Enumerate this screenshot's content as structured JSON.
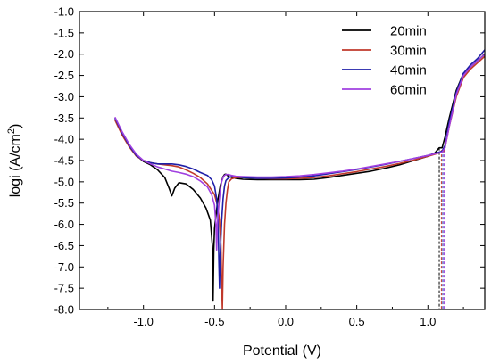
{
  "chart_data": {
    "type": "line",
    "xlabel": "Potential (V)",
    "ylabel": "logi (A/cm²)",
    "ylabel_main": "logi (A/cm",
    "ylabel_sup": "2",
    "ylabel_close": ")",
    "xlim": [
      -1.45,
      1.4
    ],
    "ylim": [
      -8.0,
      -1.0
    ],
    "x_ticks": [
      -1.0,
      -0.5,
      0.0,
      0.5,
      1.0
    ],
    "x_tick_labels": [
      "-1.0",
      "-0.5",
      "0.0",
      "0.5",
      "1.0"
    ],
    "y_ticks": [
      -8.0,
      -7.5,
      -7.0,
      -6.5,
      -6.0,
      -5.5,
      -5.0,
      -4.5,
      -4.0,
      -3.5,
      -3.0,
      -2.5,
      -2.0,
      -1.5,
      -1.0
    ],
    "y_tick_labels": [
      "-8.0",
      "-7.5",
      "-7.0",
      "-6.5",
      "-6.0",
      "-5.5",
      "-5.0",
      "-4.5",
      "-4.0",
      "-3.5",
      "-3.0",
      "-2.5",
      "-2.0",
      "-1.5",
      "-1.0"
    ],
    "grid": false,
    "legend_position": "top-right",
    "series": [
      {
        "name": "20min",
        "color": "#000000",
        "x": [
          -1.2,
          -1.15,
          -1.1,
          -1.05,
          -1.0,
          -0.95,
          -0.9,
          -0.85,
          -0.82,
          -0.8,
          -0.78,
          -0.75,
          -0.7,
          -0.65,
          -0.6,
          -0.56,
          -0.53,
          -0.515,
          -0.51,
          -0.505,
          -0.5,
          -0.49,
          -0.48,
          -0.47,
          -0.46,
          -0.45,
          -0.44,
          -0.43,
          -0.42,
          -0.41,
          -0.4,
          -0.35,
          -0.3,
          -0.2,
          -0.1,
          0.0,
          0.1,
          0.2,
          0.3,
          0.4,
          0.5,
          0.6,
          0.7,
          0.8,
          0.9,
          1.0,
          1.05,
          1.08,
          1.09,
          1.1,
          1.12,
          1.15,
          1.2,
          1.25,
          1.3,
          1.35,
          1.4
        ],
        "y": [
          -3.5,
          -3.85,
          -4.15,
          -4.38,
          -4.52,
          -4.6,
          -4.72,
          -4.9,
          -5.15,
          -5.33,
          -5.15,
          -5.02,
          -5.05,
          -5.18,
          -5.38,
          -5.62,
          -5.9,
          -6.5,
          -7.8,
          -6.6,
          -6.1,
          -5.8,
          -5.5,
          -5.3,
          -5.1,
          -4.98,
          -4.88,
          -4.83,
          -4.82,
          -4.85,
          -4.88,
          -4.92,
          -4.94,
          -4.95,
          -4.95,
          -4.95,
          -4.95,
          -4.94,
          -4.9,
          -4.85,
          -4.8,
          -4.75,
          -4.68,
          -4.6,
          -4.5,
          -4.4,
          -4.32,
          -4.2,
          -4.2,
          -4.2,
          -3.95,
          -3.5,
          -2.85,
          -2.45,
          -2.3,
          -2.15,
          -2.0
        ]
      },
      {
        "name": "30min",
        "color": "#c0392b",
        "x": [
          -1.2,
          -1.15,
          -1.1,
          -1.05,
          -1.0,
          -0.95,
          -0.9,
          -0.85,
          -0.8,
          -0.75,
          -0.7,
          -0.65,
          -0.6,
          -0.55,
          -0.5,
          -0.48,
          -0.465,
          -0.455,
          -0.45,
          -0.445,
          -0.44,
          -0.43,
          -0.42,
          -0.41,
          -0.4,
          -0.38,
          -0.35,
          -0.3,
          -0.2,
          -0.1,
          0.0,
          0.1,
          0.2,
          0.3,
          0.4,
          0.5,
          0.6,
          0.7,
          0.8,
          0.9,
          1.0,
          1.05,
          1.08,
          1.1,
          1.11,
          1.12,
          1.15,
          1.2,
          1.25,
          1.3,
          1.35,
          1.4
        ],
        "y": [
          -3.55,
          -3.9,
          -4.18,
          -4.4,
          -4.5,
          -4.55,
          -4.58,
          -4.6,
          -4.62,
          -4.65,
          -4.72,
          -4.8,
          -4.9,
          -5.05,
          -5.3,
          -5.55,
          -5.9,
          -6.5,
          -7.4,
          -8.0,
          -7.0,
          -6.0,
          -5.5,
          -5.2,
          -5.0,
          -4.93,
          -4.9,
          -4.9,
          -4.92,
          -4.93,
          -4.93,
          -4.92,
          -4.9,
          -4.86,
          -4.81,
          -4.76,
          -4.7,
          -4.64,
          -4.57,
          -4.49,
          -4.4,
          -4.35,
          -4.32,
          -4.3,
          -4.28,
          -4.2,
          -3.7,
          -3.0,
          -2.55,
          -2.35,
          -2.2,
          -2.05
        ]
      },
      {
        "name": "40min",
        "color": "#1f1fa8",
        "x": [
          -1.2,
          -1.15,
          -1.1,
          -1.05,
          -1.0,
          -0.95,
          -0.9,
          -0.85,
          -0.8,
          -0.75,
          -0.7,
          -0.65,
          -0.6,
          -0.55,
          -0.52,
          -0.5,
          -0.485,
          -0.475,
          -0.47,
          -0.465,
          -0.46,
          -0.45,
          -0.44,
          -0.43,
          -0.42,
          -0.4,
          -0.38,
          -0.35,
          -0.3,
          -0.2,
          -0.1,
          0.0,
          0.1,
          0.2,
          0.3,
          0.4,
          0.5,
          0.6,
          0.7,
          0.8,
          0.9,
          1.0,
          1.05,
          1.08,
          1.1,
          1.12,
          1.15,
          1.2,
          1.25,
          1.3,
          1.35,
          1.4
        ],
        "y": [
          -3.5,
          -3.85,
          -4.15,
          -4.38,
          -4.5,
          -4.55,
          -4.58,
          -4.58,
          -4.58,
          -4.6,
          -4.64,
          -4.7,
          -4.78,
          -4.85,
          -4.95,
          -5.1,
          -5.4,
          -5.9,
          -6.8,
          -7.5,
          -6.7,
          -5.9,
          -5.4,
          -5.1,
          -4.97,
          -4.9,
          -4.88,
          -4.88,
          -4.9,
          -4.92,
          -4.92,
          -4.91,
          -4.89,
          -4.86,
          -4.81,
          -4.76,
          -4.71,
          -4.65,
          -4.59,
          -4.52,
          -4.45,
          -4.38,
          -4.33,
          -4.3,
          -4.28,
          -4.15,
          -3.6,
          -2.9,
          -2.45,
          -2.25,
          -2.1,
          -1.9
        ]
      },
      {
        "name": "60min",
        "color": "#a040e0",
        "x": [
          -1.2,
          -1.15,
          -1.1,
          -1.05,
          -1.0,
          -0.95,
          -0.9,
          -0.85,
          -0.8,
          -0.75,
          -0.7,
          -0.65,
          -0.6,
          -0.55,
          -0.52,
          -0.5,
          -0.49,
          -0.485,
          -0.48,
          -0.47,
          -0.46,
          -0.45,
          -0.44,
          -0.43,
          -0.42,
          -0.4,
          -0.38,
          -0.35,
          -0.3,
          -0.2,
          -0.1,
          0.0,
          0.1,
          0.2,
          0.3,
          0.4,
          0.5,
          0.6,
          0.7,
          0.8,
          0.9,
          1.0,
          1.05,
          1.08,
          1.1,
          1.12,
          1.15,
          1.2,
          1.25,
          1.3,
          1.35,
          1.4
        ],
        "y": [
          -3.48,
          -3.82,
          -4.12,
          -4.35,
          -4.5,
          -4.58,
          -4.65,
          -4.7,
          -4.75,
          -4.78,
          -4.82,
          -4.88,
          -4.98,
          -5.12,
          -5.3,
          -5.55,
          -6.0,
          -6.6,
          -6.0,
          -5.55,
          -5.2,
          -5.0,
          -4.9,
          -4.85,
          -4.83,
          -4.83,
          -4.85,
          -4.87,
          -4.88,
          -4.89,
          -4.89,
          -4.88,
          -4.86,
          -4.83,
          -4.79,
          -4.75,
          -4.7,
          -4.64,
          -4.58,
          -4.52,
          -4.45,
          -4.38,
          -4.34,
          -4.32,
          -4.3,
          -4.2,
          -3.7,
          -2.95,
          -2.5,
          -2.3,
          -2.15,
          -2.0
        ]
      }
    ],
    "dashed_lines": [
      {
        "x": 1.08,
        "y_top": -4.2,
        "color": "#000000"
      },
      {
        "x": 1.095,
        "y_top": -4.25,
        "color": "#c0392b"
      },
      {
        "x": 1.105,
        "y_top": -4.25,
        "color": "#1f1fa8"
      },
      {
        "x": 1.115,
        "y_top": -4.25,
        "color": "#a040e0"
      }
    ]
  }
}
